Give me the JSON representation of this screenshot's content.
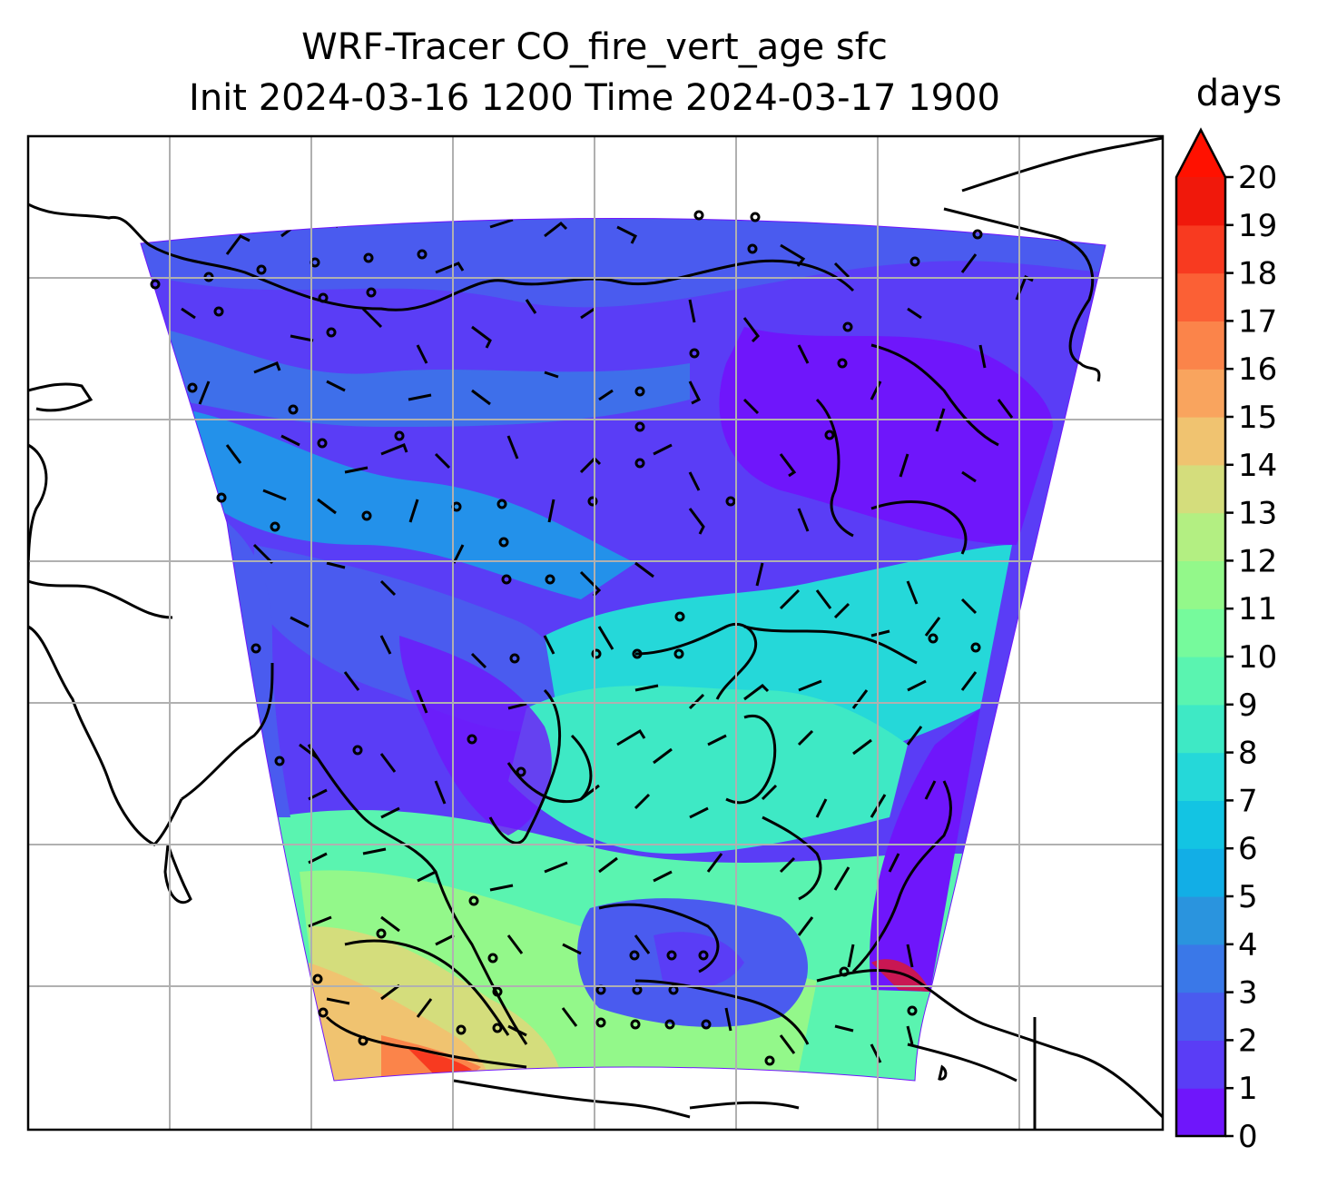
{
  "figure": {
    "title_line1": "WRF-Tracer CO_fire_vert_age sfc",
    "title_line2": "Init 2024-03-16 1200 Time 2024-03-17 1900"
  },
  "colorbar": {
    "label": "days",
    "extend": "max",
    "min": 0,
    "max": 20,
    "ticks": [
      "0",
      "1",
      "2",
      "3",
      "4",
      "5",
      "6",
      "7",
      "8",
      "9",
      "10",
      "11",
      "12",
      "13",
      "14",
      "15",
      "16",
      "17",
      "18",
      "19",
      "20"
    ],
    "colors": [
      "#6f16fb",
      "#5a3df6",
      "#4a5bef",
      "#3a78e8",
      "#2a94de",
      "#12aee6",
      "#13c4e3",
      "#25d8d9",
      "#3ee9c5",
      "#5af4b0",
      "#76fa9c",
      "#93f88a",
      "#b3ef82",
      "#d4dd7c",
      "#f0c370",
      "#f9a45e",
      "#fb844a",
      "#fb6035",
      "#f83a20",
      "#f0180b"
    ],
    "over_color": "#ff1100"
  },
  "map": {
    "type": "filled-contour map with wind barbs",
    "field": "CO_fire_vert_age",
    "level": "sfc",
    "units": "days",
    "gridlines": true,
    "coastlines": true,
    "wind_barbs": true
  }
}
